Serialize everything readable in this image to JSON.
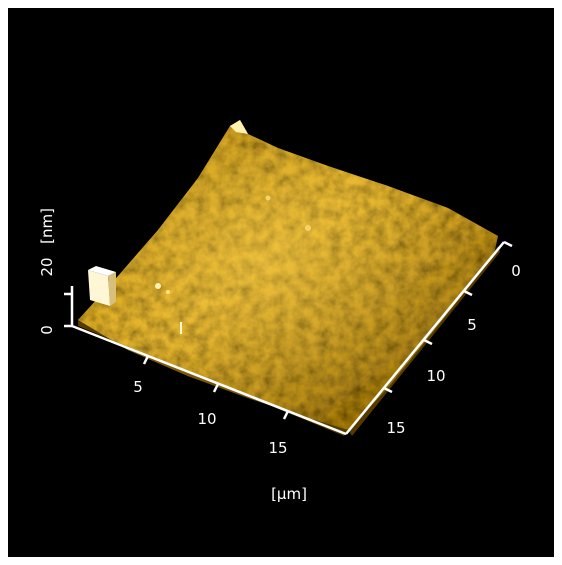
{
  "image": {
    "background": "#000000",
    "surface_colors": {
      "dark": "#7a5300",
      "mid": "#b98a10",
      "light": "#e6b42a",
      "highlight": "#fff1b0"
    },
    "axis_color": "#ffffff"
  },
  "axes": {
    "z": {
      "unit": "[nm]",
      "ticks": [
        "0",
        "20"
      ]
    },
    "x": {
      "unit": "[µm]",
      "ticks": [
        "5",
        "10",
        "15"
      ]
    },
    "y": {
      "ticks": [
        "0",
        "5",
        "10",
        "15"
      ]
    }
  }
}
